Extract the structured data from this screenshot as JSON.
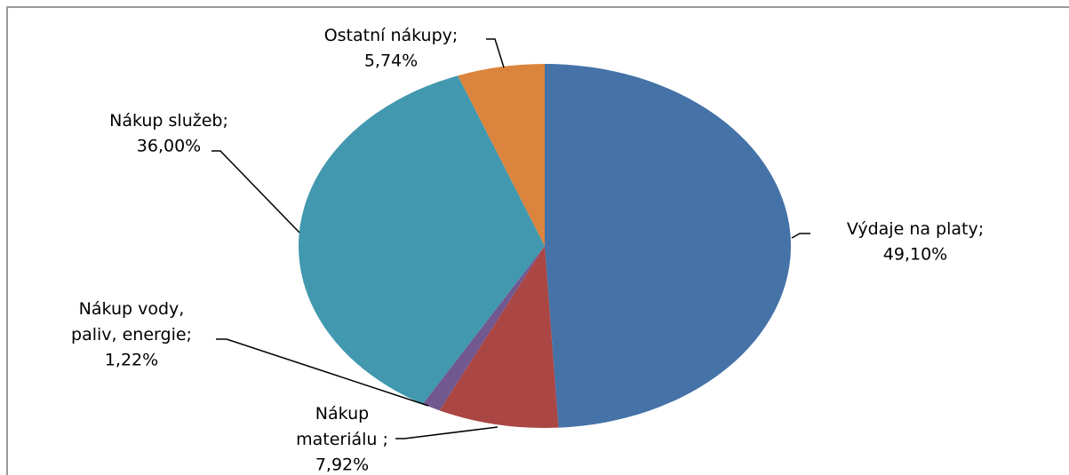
{
  "chart_data": {
    "type": "pie",
    "categories": [
      "Výdaje na platy;",
      "Nákup materiálu ;",
      "Nákup vody, paliv, energie;",
      "Nákup služeb;",
      "Ostatní nákupy;"
    ],
    "values": [
      49.1,
      7.92,
      1.22,
      36.0,
      5.74
    ],
    "value_labels": [
      "49,10%",
      "7,92%",
      "1,22%",
      "36,00%",
      "5,74%"
    ],
    "colors": [
      "#4572a7",
      "#aa4643",
      "#71588f",
      "#4198af",
      "#db843d"
    ]
  }
}
